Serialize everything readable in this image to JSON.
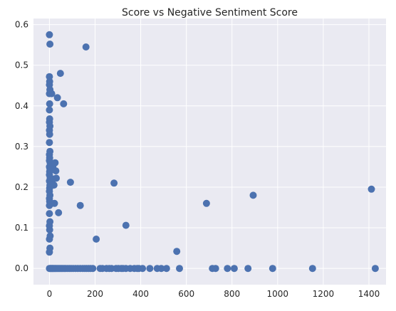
{
  "chart_data": {
    "type": "scatter",
    "title": "Score vs Negative Sentiment Score",
    "xlabel": "",
    "ylabel": "",
    "xlim": [
      -70,
      1475
    ],
    "ylim": [
      -0.04,
      0.615
    ],
    "x_ticks": [
      0,
      200,
      400,
      600,
      800,
      1000,
      1200,
      1400
    ],
    "y_ticks": [
      0.0,
      0.1,
      0.2,
      0.3,
      0.4,
      0.5,
      0.6
    ],
    "y_tick_labels": [
      "0.0",
      "0.1",
      "0.2",
      "0.3",
      "0.4",
      "0.5",
      "0.6"
    ],
    "grid": true,
    "color": "#4c72b0",
    "background": "#eaeaf2",
    "series": [
      {
        "points": [
          [
            0,
            0.575
          ],
          [
            2,
            0.552
          ],
          [
            0,
            0.472
          ],
          [
            1,
            0.46
          ],
          [
            0,
            0.452
          ],
          [
            2,
            0.44
          ],
          [
            0,
            0.43
          ],
          [
            1,
            0.405
          ],
          [
            0,
            0.39
          ],
          [
            1,
            0.368
          ],
          [
            0,
            0.36
          ],
          [
            2,
            0.35
          ],
          [
            0,
            0.34
          ],
          [
            1,
            0.33
          ],
          [
            0,
            0.31
          ],
          [
            2,
            0.288
          ],
          [
            0,
            0.28
          ],
          [
            1,
            0.272
          ],
          [
            0,
            0.265
          ],
          [
            3,
            0.26
          ],
          [
            0,
            0.25
          ],
          [
            2,
            0.245
          ],
          [
            1,
            0.238
          ],
          [
            0,
            0.23
          ],
          [
            3,
            0.222
          ],
          [
            0,
            0.215
          ],
          [
            2,
            0.205
          ],
          [
            1,
            0.198
          ],
          [
            0,
            0.19
          ],
          [
            2,
            0.18
          ],
          [
            0,
            0.172
          ],
          [
            1,
            0.165
          ],
          [
            0,
            0.155
          ],
          [
            0,
            0.135
          ],
          [
            2,
            0.115
          ],
          [
            0,
            0.105
          ],
          [
            1,
            0.095
          ],
          [
            3,
            0.08
          ],
          [
            0,
            0.072
          ],
          [
            2,
            0.05
          ],
          [
            0,
            0.04
          ],
          [
            10,
            0.43
          ],
          [
            15,
            0.25
          ],
          [
            18,
            0.22
          ],
          [
            20,
            0.205
          ],
          [
            22,
            0.16
          ],
          [
            25,
            0.26
          ],
          [
            28,
            0.24
          ],
          [
            30,
            0.222
          ],
          [
            35,
            0.42
          ],
          [
            40,
            0.137
          ],
          [
            48,
            0.48
          ],
          [
            62,
            0.405
          ],
          [
            92,
            0.212
          ],
          [
            135,
            0.155
          ],
          [
            160,
            0.545
          ],
          [
            205,
            0.072
          ],
          [
            283,
            0.21
          ],
          [
            335,
            0.106
          ],
          [
            558,
            0.042
          ],
          [
            688,
            0.16
          ],
          [
            893,
            0.18
          ],
          [
            1411,
            0.195
          ],
          [
            0,
            0
          ],
          [
            3,
            0
          ],
          [
            6,
            0
          ],
          [
            9,
            0
          ],
          [
            12,
            0
          ],
          [
            15,
            0
          ],
          [
            18,
            0
          ],
          [
            22,
            0
          ],
          [
            26,
            0
          ],
          [
            30,
            0
          ],
          [
            35,
            0
          ],
          [
            40,
            0
          ],
          [
            45,
            0
          ],
          [
            50,
            0
          ],
          [
            55,
            0
          ],
          [
            60,
            0
          ],
          [
            66,
            0
          ],
          [
            72,
            0
          ],
          [
            80,
            0
          ],
          [
            88,
            0
          ],
          [
            95,
            0
          ],
          [
            104,
            0
          ],
          [
            114,
            0
          ],
          [
            124,
            0
          ],
          [
            135,
            0
          ],
          [
            146,
            0
          ],
          [
            155,
            0
          ],
          [
            163,
            0
          ],
          [
            172,
            0
          ],
          [
            180,
            0
          ],
          [
            190,
            0
          ],
          [
            222,
            0
          ],
          [
            232,
            0
          ],
          [
            250,
            0
          ],
          [
            262,
            0
          ],
          [
            272,
            0
          ],
          [
            292,
            0
          ],
          [
            302,
            0
          ],
          [
            315,
            0
          ],
          [
            322,
            0
          ],
          [
            335,
            0
          ],
          [
            354,
            0
          ],
          [
            372,
            0
          ],
          [
            385,
            0
          ],
          [
            392,
            0
          ],
          [
            408,
            0
          ],
          [
            440,
            0
          ],
          [
            472,
            0
          ],
          [
            490,
            0
          ],
          [
            513,
            0
          ],
          [
            570,
            0
          ],
          [
            714,
            0
          ],
          [
            728,
            0
          ],
          [
            780,
            0
          ],
          [
            810,
            0
          ],
          [
            870,
            0
          ],
          [
            978,
            0
          ],
          [
            1153,
            0
          ],
          [
            1428,
            0
          ]
        ]
      }
    ]
  }
}
